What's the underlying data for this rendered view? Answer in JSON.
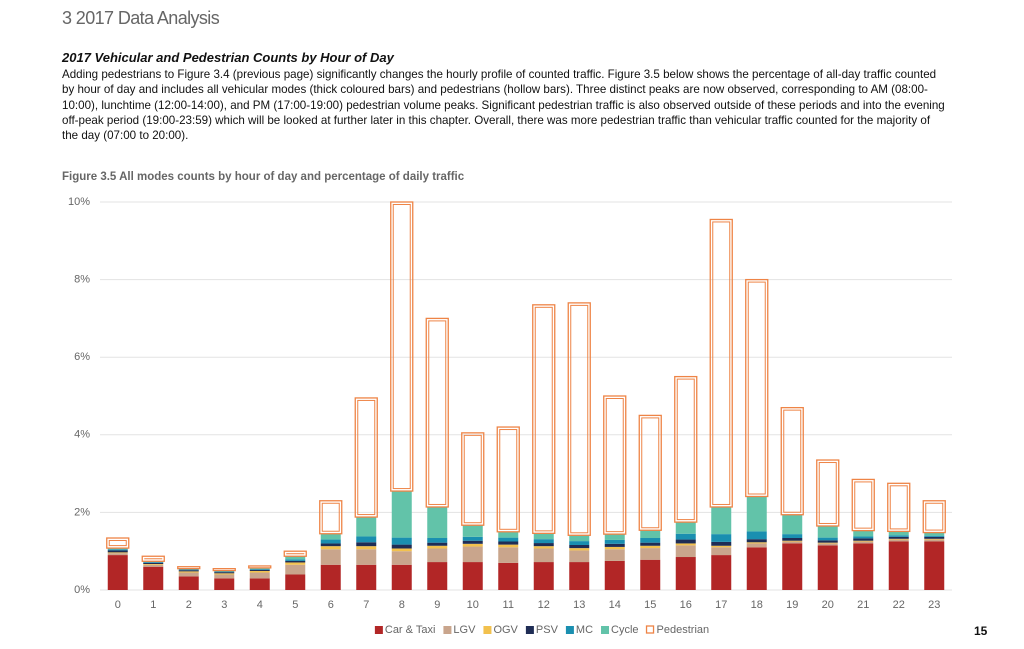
{
  "header": {
    "title": "3 2017 Data Analysis"
  },
  "section": {
    "title": "2017 Vehicular and Pedestrian Counts by Hour of Day",
    "paragraph": "Adding pedestrians to Figure 3.4 (previous page) significantly changes the hourly profile of counted traffic. Figure 3.5 below shows the percentage of all-day traffic counted by hour of day and includes all vehicular modes (thick coloured bars) and pedestrians (hollow bars). Three distinct peaks are now observed, corresponding to AM (08:00-10:00), lunchtime (12:00-14:00), and PM (17:00-19:00) pedestrian volume peaks. Significant pedestrian traffic is also observed outside of these periods and into the evening off-peak period (19:00-23:59) which will be looked at further later in this chapter. Overall, there was more pedestrian traffic than vehicular traffic counted for the majority of the day (07:00 to 20:00)."
  },
  "chart_data": {
    "type": "stacked_bar",
    "title": "Figure 3.5 All modes counts by hour of day and percentage of daily traffic",
    "categories": [
      "0",
      "1",
      "2",
      "3",
      "4",
      "5",
      "6",
      "7",
      "8",
      "9",
      "10",
      "11",
      "12",
      "13",
      "14",
      "15",
      "16",
      "17",
      "18",
      "19",
      "20",
      "21",
      "22",
      "23"
    ],
    "ylim": [
      0,
      10
    ],
    "yticks": [
      {
        "value": 0,
        "label": "0%"
      },
      {
        "value": 2,
        "label": "2%"
      },
      {
        "value": 4,
        "label": "4%"
      },
      {
        "value": 6,
        "label": "6%"
      },
      {
        "value": 8,
        "label": "8%"
      },
      {
        "value": 10,
        "label": "10%"
      }
    ],
    "grid": true,
    "legend": "bottom",
    "series": [
      {
        "name": "Car & Taxi",
        "color": "#b22626",
        "values": [
          0.9,
          0.6,
          0.35,
          0.3,
          0.3,
          0.4,
          0.65,
          0.65,
          0.65,
          0.72,
          0.72,
          0.7,
          0.72,
          0.72,
          0.75,
          0.78,
          0.85,
          0.9,
          1.1,
          1.2,
          1.15,
          1.2,
          1.25,
          1.25
        ]
      },
      {
        "name": "LGV",
        "color": "#c9a58c",
        "values": [
          0.05,
          0.05,
          0.1,
          0.1,
          0.15,
          0.25,
          0.4,
          0.4,
          0.35,
          0.35,
          0.4,
          0.4,
          0.35,
          0.3,
          0.3,
          0.3,
          0.3,
          0.2,
          0.1,
          0.05,
          0.05,
          0.05,
          0.05,
          0.05
        ]
      },
      {
        "name": "OGV",
        "color": "#f2c14e",
        "values": [
          0.02,
          0.02,
          0.03,
          0.03,
          0.04,
          0.06,
          0.08,
          0.08,
          0.07,
          0.07,
          0.07,
          0.07,
          0.06,
          0.06,
          0.06,
          0.06,
          0.05,
          0.04,
          0.03,
          0.02,
          0.02,
          0.02,
          0.02,
          0.02
        ]
      },
      {
        "name": "PSV",
        "color": "#1f2d55",
        "values": [
          0.05,
          0.03,
          0.03,
          0.03,
          0.03,
          0.04,
          0.07,
          0.1,
          0.1,
          0.08,
          0.08,
          0.08,
          0.08,
          0.08,
          0.08,
          0.08,
          0.1,
          0.1,
          0.08,
          0.07,
          0.06,
          0.06,
          0.05,
          0.05
        ]
      },
      {
        "name": "MC",
        "color": "#1a8fb0",
        "values": [
          0.03,
          0.02,
          0.02,
          0.02,
          0.02,
          0.04,
          0.1,
          0.15,
          0.18,
          0.12,
          0.1,
          0.1,
          0.1,
          0.1,
          0.1,
          0.12,
          0.15,
          0.2,
          0.2,
          0.1,
          0.07,
          0.05,
          0.04,
          0.03
        ]
      },
      {
        "name": "Cycle",
        "color": "#62c3a9",
        "values": [
          0.03,
          0.02,
          0.02,
          0.02,
          0.03,
          0.08,
          0.15,
          0.5,
          1.2,
          0.8,
          0.3,
          0.15,
          0.15,
          0.15,
          0.15,
          0.2,
          0.3,
          0.7,
          0.9,
          0.5,
          0.3,
          0.15,
          0.1,
          0.08
        ]
      },
      {
        "name": "Pedestrian",
        "color": "#ee8446",
        "hollow": true,
        "values": [
          0.26,
          0.13,
          0.05,
          0.05,
          0.05,
          0.13,
          0.85,
          3.07,
          7.45,
          4.86,
          2.38,
          2.7,
          5.89,
          5.99,
          3.56,
          2.96,
          3.75,
          7.41,
          5.59,
          2.76,
          1.7,
          1.32,
          1.24,
          0.82
        ]
      }
    ]
  },
  "footer": {
    "page_number": "15"
  }
}
